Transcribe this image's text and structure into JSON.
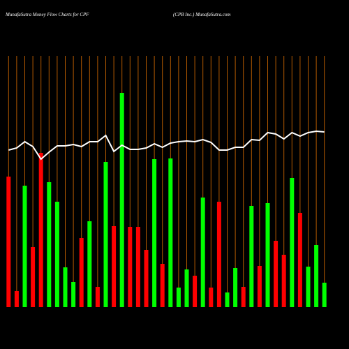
{
  "chart_data": {
    "type": "bar",
    "title": "MunafaSutra  Money Flow  Charts for CPF",
    "subtitle": "(CPB Inc.) MunafaSutra.com",
    "categories": [
      null,
      null,
      null,
      null,
      null,
      null,
      null,
      null,
      null,
      null,
      null,
      null,
      null,
      null,
      null,
      null,
      null,
      null,
      null,
      null,
      null,
      null,
      null,
      null,
      null,
      null,
      null,
      null,
      null,
      null,
      null,
      null,
      null,
      null,
      null,
      null,
      null,
      null,
      null,
      null
    ],
    "values": [
      187,
      23,
      174,
      86,
      221,
      179,
      151,
      57,
      36,
      99,
      123,
      29,
      208,
      116,
      307,
      115,
      115,
      82,
      212,
      62,
      213,
      28,
      54,
      45,
      157,
      28,
      151,
      21,
      56,
      29,
      145,
      59,
      149,
      95,
      75,
      185,
      135,
      58,
      89,
      35
    ],
    "bar_colors": [
      "#ff0000",
      "#ff0000",
      "#00ff00",
      "#ff0000",
      "#ff0000",
      "#00ff00",
      "#00ff00",
      "#00ff00",
      "#00ff00",
      "#ff0000",
      "#00ff00",
      "#ff0000",
      "#00ff00",
      "#ff0000",
      "#00ff00",
      "#ff0000",
      "#ff0000",
      "#ff0000",
      "#00ff00",
      "#ff0000",
      "#00ff00",
      "#00ff00",
      "#00ff00",
      "#ff0000",
      "#00ff00",
      "#ff0000",
      "#ff0000",
      "#00ff00",
      "#00ff00",
      "#ff0000",
      "#00ff00",
      "#ff0000",
      "#00ff00",
      "#ff0000",
      "#ff0000",
      "#00ff00",
      "#ff0000",
      "#00ff00",
      "#00ff00",
      "#00ff00"
    ],
    "line": {
      "color": "#ffffff",
      "values": [
        225,
        228,
        237,
        230,
        212,
        222,
        231,
        231,
        233,
        230,
        237,
        237,
        246,
        223,
        232,
        226,
        226,
        228,
        234,
        229,
        235,
        237,
        238,
        237,
        240,
        236,
        225,
        225,
        229,
        229,
        240,
        239,
        250,
        248,
        241,
        250,
        245,
        250,
        252,
        251
      ]
    },
    "gridline_color": "#b35900",
    "ylim": [
      0,
      360
    ]
  }
}
